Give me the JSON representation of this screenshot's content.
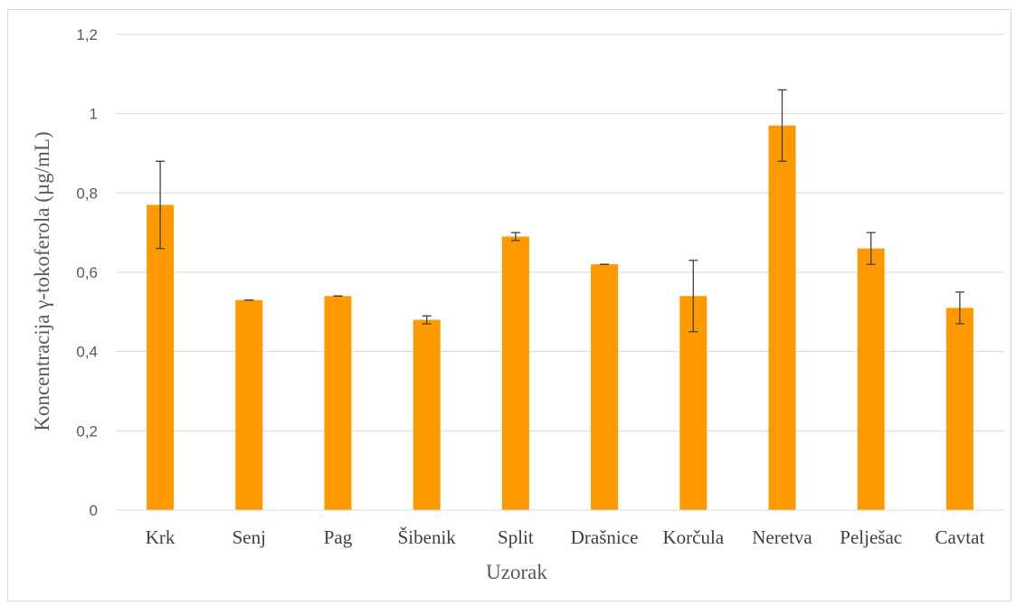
{
  "chart_data": {
    "type": "bar",
    "title": "",
    "xlabel": "Uzorak",
    "ylabel": "Koncentracija γ-tokoferola (µg/mL)",
    "ylim": [
      0,
      1.2
    ],
    "yticks": [
      0,
      0.2,
      0.4,
      0.6,
      0.8,
      1,
      1.2
    ],
    "ytick_labels": [
      "0",
      "0,2",
      "0,4",
      "0,6",
      "0,8",
      "1",
      "1,2"
    ],
    "categories": [
      "Krk",
      "Senj",
      "Pag",
      "Šibenik",
      "Split",
      "Drašnice",
      "Korčula",
      "Neretva",
      "Pelješac",
      "Cavtat"
    ],
    "values": [
      0.77,
      0.53,
      0.54,
      0.48,
      0.69,
      0.62,
      0.54,
      0.97,
      0.66,
      0.51
    ],
    "errors": [
      0.11,
      0.0,
      0.0,
      0.01,
      0.01,
      0.0,
      0.09,
      0.09,
      0.04,
      0.04
    ],
    "bar_color": "#ff9900",
    "error_color": "#404040",
    "grid": true,
    "grid_color": "#d9d9d9",
    "legend": "none"
  }
}
